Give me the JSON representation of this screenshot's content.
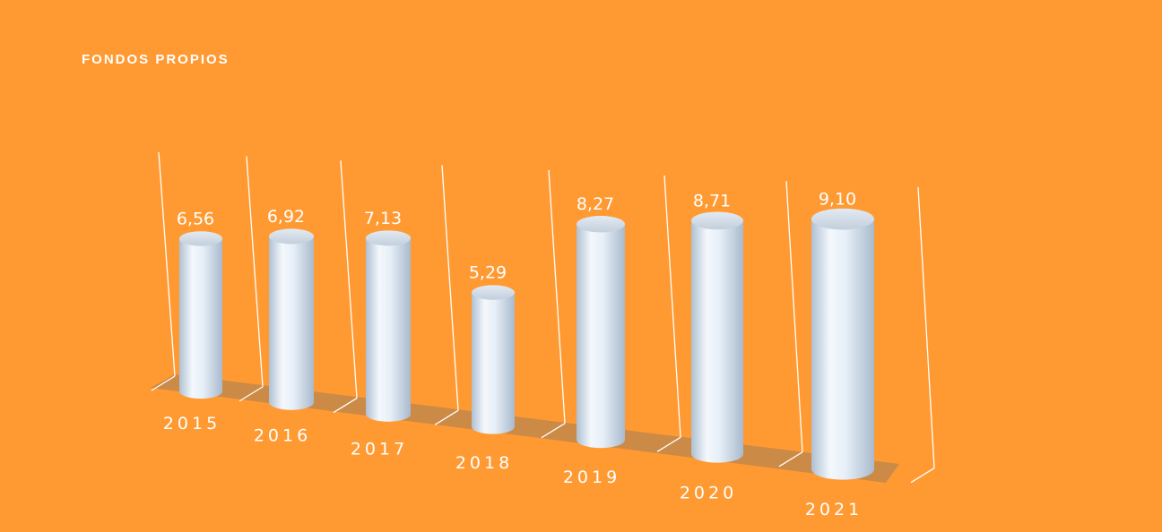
{
  "chart_data": {
    "type": "bar",
    "title": "FONDOS PROPIOS",
    "categories": [
      "2015",
      "2016",
      "2017",
      "2018",
      "2019",
      "2020",
      "2021"
    ],
    "values": [
      6.56,
      6.92,
      7.13,
      5.29,
      8.27,
      8.71,
      9.1
    ],
    "value_labels": [
      "6,56",
      "6,92",
      "7,13",
      "5,29",
      "8,27",
      "8,71",
      "9,10"
    ],
    "grid": true,
    "legend": "none",
    "colors": {
      "background": "#FF9A33",
      "bar": "#DCE7F3",
      "floor": "#CC8A47",
      "text": "#FFFFFF",
      "gridline": "#FFFFFF"
    }
  }
}
